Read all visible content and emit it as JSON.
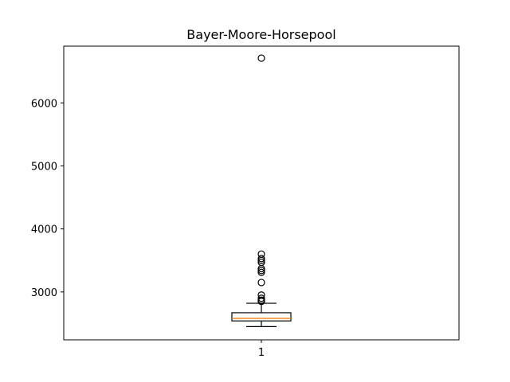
{
  "chart_data": {
    "type": "box",
    "title": "Bayer-Moore-Horsepool",
    "xlabel": "",
    "ylabel": "",
    "categories": [
      "1"
    ],
    "ylim": [
      2240,
      6900
    ],
    "yticks": [
      3000,
      4000,
      5000,
      6000
    ],
    "grid": false,
    "boxes": [
      {
        "label": "1",
        "whisker_low": 2450,
        "q1": 2540,
        "median": 2580,
        "q3": 2670,
        "whisker_high": 2820,
        "outliers": [
          2850,
          2860,
          2870,
          2900,
          2950,
          3150,
          3310,
          3340,
          3370,
          3470,
          3500,
          3530,
          3600,
          6710
        ]
      }
    ],
    "colors": {
      "box": "#000000",
      "median": "#ff7f0e",
      "outlier": "#000000"
    }
  }
}
